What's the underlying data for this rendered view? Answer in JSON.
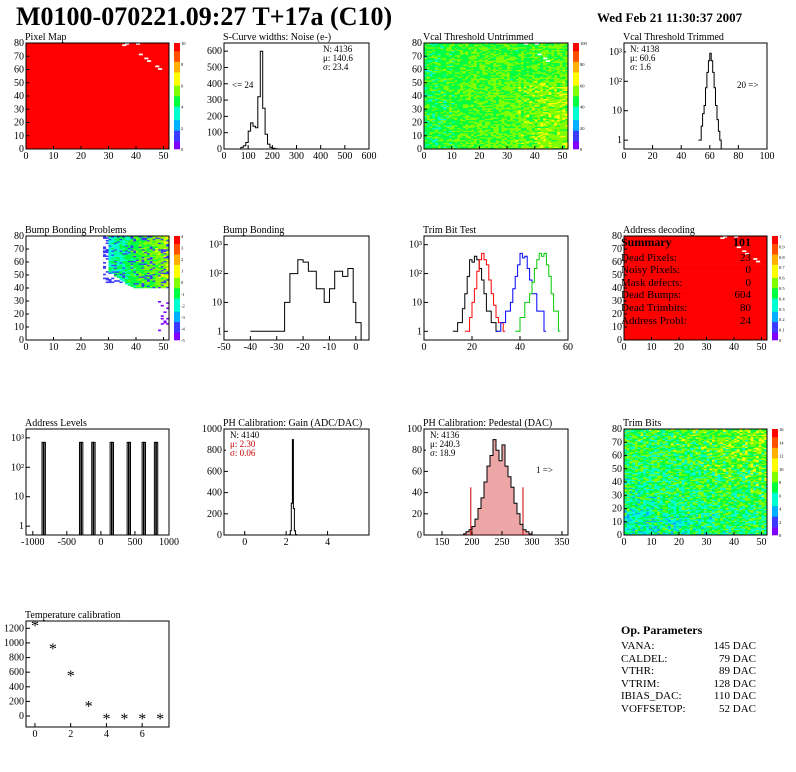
{
  "header": {
    "title": "M0100-070221.09:27 T+17a (C10)",
    "timestamp": "Wed Feb 21 11:30:37 2007"
  },
  "summary": {
    "title": "Summary",
    "count": "101",
    "rows": [
      {
        "label": "Dead Pixels:",
        "value": "23"
      },
      {
        "label": "Noisy Pixels:",
        "value": "0"
      },
      {
        "label": "Mask defects:",
        "value": "0"
      },
      {
        "label": "Dead Bumps:",
        "value": "604"
      },
      {
        "label": "Dead Trimbits:",
        "value": "80"
      },
      {
        "label": "Address Probl:",
        "value": "24"
      }
    ]
  },
  "op_params": {
    "title": "Op. Parameters",
    "rows": [
      {
        "label": "VANA:",
        "value": "145 DAC"
      },
      {
        "label": "CALDEL:",
        "value": "79 DAC"
      },
      {
        "label": "VTHR:",
        "value": "89 DAC"
      },
      {
        "label": "VTRIM:",
        "value": "128 DAC"
      },
      {
        "label": "IBIAS_DAC:",
        "value": "110 DAC"
      },
      {
        "label": "VOFFSETOP:",
        "value": "52 DAC"
      }
    ]
  },
  "colors": {
    "heat_palette": [
      "#8000ff",
      "#3b3bff",
      "#00b0ff",
      "#00ffd0",
      "#00ff40",
      "#80ff00",
      "#ffff00",
      "#ffb000",
      "#ff5000",
      "#ff0000"
    ],
    "trim_series": [
      "#000000",
      "#ff0000",
      "#0000ff",
      "#00cc00"
    ],
    "pedestal_fill": "#cc0000"
  },
  "chart_data": [
    {
      "type": "heatmap",
      "title": "Pixel Map",
      "xlim": [
        0,
        52
      ],
      "ylim": [
        0,
        80
      ],
      "xticks": [
        "0",
        "10",
        "20",
        "30",
        "40",
        "50"
      ],
      "yticks": [
        "0",
        "10",
        "20",
        "30",
        "40",
        "50",
        "60",
        "70",
        "80"
      ],
      "zticks": [
        "0",
        "2",
        "4",
        "6",
        "8",
        "10"
      ],
      "pattern": "uniform_max",
      "uniform_level": 1.0,
      "defects": [
        [
          36,
          79
        ],
        [
          40,
          79
        ],
        [
          35,
          78
        ],
        [
          41,
          71
        ],
        [
          43,
          68
        ],
        [
          44,
          66
        ],
        [
          47,
          62
        ],
        [
          48,
          60
        ]
      ]
    },
    {
      "type": "line",
      "title": "S-Curve widths: Noise (e-)",
      "logy": false,
      "xlim": [
        0,
        600
      ],
      "ylim": [
        0,
        650
      ],
      "xticks": [
        "0",
        "100",
        "200",
        "300",
        "400",
        "500",
        "600"
      ],
      "yticks": [
        "0",
        "100",
        "200",
        "300",
        "400",
        "500",
        "600"
      ],
      "stats": [
        "N: 4136",
        "μ: 140.6",
        "σ: 23.4"
      ],
      "annotation": "<= 24",
      "series": [
        {
          "name": "noise",
          "x": [
            60,
            70,
            80,
            90,
            100,
            110,
            120,
            130,
            140,
            150,
            160,
            170,
            180,
            190,
            200,
            210,
            220
          ],
          "y": [
            0,
            10,
            20,
            40,
            110,
            160,
            140,
            130,
            320,
            600,
            250,
            90,
            30,
            10,
            5,
            2,
            0
          ]
        }
      ]
    },
    {
      "type": "heatmap",
      "title": "Vcal Threshold Untrimmed",
      "xlim": [
        0,
        52
      ],
      "ylim": [
        0,
        80
      ],
      "xticks": [
        "0",
        "10",
        "20",
        "30",
        "40",
        "50"
      ],
      "yticks": [
        "0",
        "10",
        "20",
        "30",
        "40",
        "50",
        "60",
        "70",
        "80"
      ],
      "zticks": [
        "0",
        "20",
        "40",
        "60",
        "80",
        "100"
      ],
      "pattern": "noise_green_gradient",
      "defects": [
        [
          36,
          79
        ],
        [
          40,
          79
        ],
        [
          41,
          71
        ],
        [
          43,
          68
        ],
        [
          44,
          66
        ]
      ]
    },
    {
      "type": "line",
      "title": "Vcal Threshold Trimmed",
      "logy": true,
      "xlim": [
        0,
        100
      ],
      "ylim": [
        0.5,
        2000
      ],
      "xticks": [
        "0",
        "20",
        "40",
        "60",
        "80",
        "100"
      ],
      "yticks": [
        "1",
        "10",
        "10²",
        "10³"
      ],
      "stats": [
        "N: 4138",
        "μ: 60.6",
        "σ: 1.6"
      ],
      "annotation": "20 =>",
      "series": [
        {
          "name": "trimmed",
          "x": [
            52,
            54,
            55,
            56,
            57,
            58,
            59,
            60,
            61,
            62,
            63,
            64,
            65,
            66,
            67,
            68
          ],
          "y": [
            1,
            3,
            8,
            15,
            60,
            200,
            500,
            900,
            500,
            200,
            60,
            15,
            5,
            2,
            1,
            0
          ]
        }
      ]
    },
    {
      "type": "heatmap",
      "title": "Bump Bonding Problems",
      "xlim": [
        0,
        52
      ],
      "ylim": [
        0,
        80
      ],
      "xticks": [
        "0",
        "10",
        "20",
        "30",
        "40",
        "50"
      ],
      "yticks": [
        "0",
        "10",
        "20",
        "30",
        "40",
        "50",
        "60",
        "70",
        "80"
      ],
      "zticks": [
        "-5",
        "-4",
        "-3",
        "-2",
        "-1",
        "0",
        "1",
        "2",
        "3",
        "4"
      ],
      "pattern": "corner_gradient",
      "defects": []
    },
    {
      "type": "line",
      "title": "Bump Bonding",
      "logy": true,
      "xlim": [
        -50,
        5
      ],
      "ylim": [
        0.5,
        2000
      ],
      "xticks": [
        "-50",
        "-40",
        "-30",
        "-20",
        "-10",
        "0"
      ],
      "yticks": [
        "1",
        "10",
        "10²",
        "10³"
      ],
      "series": [
        {
          "name": "bump",
          "x": [
            -40,
            -38,
            -27,
            -25,
            -22,
            -20,
            -18,
            -15,
            -12,
            -10,
            -8,
            -5,
            -3,
            -1,
            0,
            2
          ],
          "y": [
            1,
            1,
            10,
            100,
            300,
            250,
            120,
            30,
            10,
            30,
            120,
            80,
            150,
            10,
            2,
            0
          ]
        }
      ]
    },
    {
      "type": "line",
      "title": "Trim Bit Test",
      "logy": true,
      "xlim": [
        0,
        60
      ],
      "ylim": [
        0.5,
        2000
      ],
      "xticks": [
        "0",
        "20",
        "40",
        "60"
      ],
      "yticks": [
        "1",
        "10",
        "10²",
        "10³"
      ],
      "series": [
        {
          "x": [
            12,
            14,
            16,
            17,
            18,
            19,
            20,
            21,
            22,
            23,
            24,
            25,
            26,
            28,
            30
          ],
          "y": [
            1,
            2,
            6,
            20,
            80,
            300,
            250,
            400,
            300,
            150,
            60,
            20,
            5,
            2,
            1
          ]
        },
        {
          "x": [
            17,
            19,
            20,
            21,
            22,
            23,
            24,
            25,
            26,
            27,
            28,
            29,
            30,
            31,
            33
          ],
          "y": [
            1,
            3,
            10,
            30,
            120,
            300,
            500,
            300,
            200,
            60,
            20,
            8,
            3,
            2,
            1
          ]
        },
        {
          "x": [
            30,
            32,
            34,
            36,
            37,
            38,
            39,
            40,
            41,
            42,
            43,
            44,
            45,
            47,
            50
          ],
          "y": [
            1,
            2,
            5,
            10,
            30,
            80,
            200,
            500,
            350,
            400,
            150,
            60,
            20,
            5,
            1
          ]
        },
        {
          "x": [
            38,
            40,
            42,
            44,
            45,
            46,
            47,
            48,
            49,
            50,
            51,
            52,
            53,
            54,
            56
          ],
          "y": [
            1,
            3,
            10,
            20,
            50,
            150,
            300,
            500,
            400,
            500,
            200,
            80,
            20,
            5,
            1
          ]
        }
      ]
    },
    {
      "type": "heatmap",
      "title": "Address decoding",
      "xlim": [
        0,
        52
      ],
      "ylim": [
        0,
        80
      ],
      "xticks": [
        "0",
        "10",
        "20",
        "30",
        "40",
        "50"
      ],
      "yticks": [
        "0",
        "10",
        "20",
        "30",
        "40",
        "50",
        "60",
        "70",
        "80"
      ],
      "zticks": [
        "0",
        "0.1",
        "0.2",
        "0.3",
        "0.4",
        "0.5",
        "0.6",
        "0.7",
        "0.8",
        "0.9",
        "1"
      ],
      "pattern": "uniform_max",
      "uniform_level": 1.0,
      "defects": [
        [
          36,
          79
        ],
        [
          40,
          79
        ],
        [
          35,
          78
        ],
        [
          41,
          71
        ],
        [
          43,
          68
        ],
        [
          44,
          66
        ],
        [
          47,
          62
        ],
        [
          48,
          60
        ]
      ]
    },
    {
      "type": "line",
      "title": "Address Levels",
      "logy": true,
      "xlim": [
        -1100,
        1000
      ],
      "ylim": [
        0.5,
        2000
      ],
      "xticks": [
        "-1000",
        "-500",
        "0",
        "500",
        "1000"
      ],
      "yticks": [
        "1",
        "10",
        "10²",
        "10³"
      ],
      "peaks": [
        -850,
        -830,
        -300,
        -280,
        -120,
        -100,
        150,
        170,
        400,
        420,
        620,
        640,
        800,
        820
      ],
      "peak_height": 700
    },
    {
      "type": "line",
      "title": "PH Calibration: Gain (ADC/DAC)",
      "logy": false,
      "xlim": [
        -1,
        6
      ],
      "ylim": [
        0,
        1000
      ],
      "xticks": [
        "0",
        "2",
        "4"
      ],
      "yticks": [
        "0",
        "200",
        "400",
        "600",
        "800",
        "1000"
      ],
      "stats": [
        "N: 4140",
        "μ: 2.30",
        "σ: 0.06"
      ],
      "series": [
        {
          "x": [
            2.1,
            2.15,
            2.2,
            2.25,
            2.3,
            2.35,
            2.4,
            2.45,
            2.5
          ],
          "y": [
            0,
            5,
            40,
            300,
            900,
            250,
            40,
            5,
            0
          ]
        }
      ]
    },
    {
      "type": "line",
      "title": "PH Calibration: Pedestal (DAC)",
      "logy": false,
      "xlim": [
        120,
        360
      ],
      "ylim": [
        0,
        100
      ],
      "xticks": [
        "150",
        "200",
        "250",
        "300",
        "350"
      ],
      "yticks": [
        "0",
        "20",
        "40",
        "60",
        "80",
        "100"
      ],
      "stats": [
        "N: 4136",
        "μ: 240.3",
        "σ: 18.9"
      ],
      "annotation": "1 =>",
      "fit_range": [
        198,
        285
      ],
      "series": [
        {
          "x": [
            185,
            190,
            195,
            200,
            205,
            210,
            215,
            220,
            225,
            230,
            235,
            240,
            245,
            250,
            255,
            260,
            265,
            270,
            275,
            280,
            285,
            290,
            295,
            300
          ],
          "y": [
            1,
            3,
            5,
            8,
            15,
            25,
            35,
            50,
            65,
            75,
            90,
            80,
            70,
            85,
            65,
            55,
            45,
            30,
            20,
            10,
            5,
            3,
            1,
            0
          ]
        }
      ]
    },
    {
      "type": "heatmap",
      "title": "Trim Bits",
      "xlim": [
        0,
        52
      ],
      "ylim": [
        0,
        80
      ],
      "xticks": [
        "0",
        "10",
        "20",
        "30",
        "40",
        "50"
      ],
      "yticks": [
        "0",
        "10",
        "20",
        "30",
        "40",
        "50",
        "60",
        "70",
        "80"
      ],
      "zticks": [
        "0",
        "2",
        "4",
        "6",
        "8",
        "10",
        "12",
        "14",
        "16"
      ],
      "pattern": "noise_cyan",
      "defects": []
    },
    {
      "type": "scatter",
      "title": "Temperature calibration",
      "xlim": [
        -0.5,
        7.5
      ],
      "ylim": [
        -150,
        1300
      ],
      "xticks": [
        "0",
        "2",
        "4",
        "6"
      ],
      "yticks": [
        "0",
        "200",
        "400",
        "600",
        "800",
        "1000",
        "1200"
      ],
      "series": [
        {
          "x": [
            0,
            1,
            2,
            3,
            4,
            5,
            6,
            7
          ],
          "y": [
            1230,
            920,
            550,
            130,
            -40,
            -40,
            -40,
            -40
          ]
        }
      ]
    }
  ]
}
